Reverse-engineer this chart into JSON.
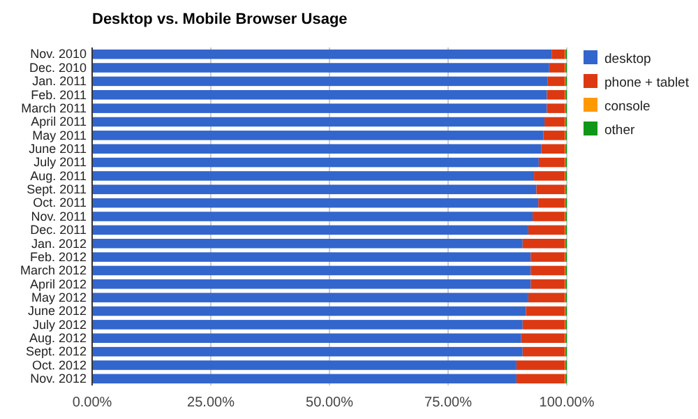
{
  "chart_data": {
    "type": "bar",
    "title": "Desktop vs. Mobile Browser Usage",
    "orientation": "horizontal",
    "stacked": true,
    "categories": [
      "Nov. 2010",
      "Dec. 2010",
      "Jan. 2011",
      "Feb. 2011",
      "March 2011",
      "April 2011",
      "May 2011",
      "June 2011",
      "July 2011",
      "Aug. 2011",
      "Sept. 2011",
      "Oct. 2011",
      "Nov. 2011",
      "Dec. 2011",
      "Jan. 2012",
      "Feb. 2012",
      "March 2012",
      "April 2012",
      "May 2012",
      "June 2012",
      "July 2012",
      "Aug. 2012",
      "Sept. 2012",
      "Oct. 2012",
      "Nov. 2012"
    ],
    "series": [
      {
        "name": "desktop",
        "color": "#3366cc",
        "values": [
          96.8,
          96.3,
          96.0,
          95.8,
          95.8,
          95.3,
          95.1,
          94.6,
          94.1,
          93.1,
          93.6,
          94.0,
          92.8,
          91.9,
          90.7,
          92.4,
          92.4,
          92.4,
          91.9,
          91.4,
          90.7,
          90.4,
          90.7,
          89.4,
          89.4
        ]
      },
      {
        "name": "phone + tablet",
        "color": "#dc3912",
        "values": [
          2.8,
          3.3,
          3.6,
          3.8,
          3.8,
          4.3,
          4.5,
          5.0,
          5.5,
          6.5,
          6.0,
          5.6,
          6.8,
          7.7,
          8.9,
          7.2,
          7.2,
          7.2,
          7.7,
          8.2,
          8.9,
          9.2,
          8.9,
          10.2,
          10.2
        ]
      },
      {
        "name": "console",
        "color": "#ff9900",
        "values": [
          0.1,
          0.1,
          0.1,
          0.1,
          0.1,
          0.1,
          0.1,
          0.1,
          0.1,
          0.1,
          0.1,
          0.1,
          0.1,
          0.1,
          0.1,
          0.1,
          0.1,
          0.1,
          0.1,
          0.1,
          0.1,
          0.1,
          0.1,
          0.1,
          0.1
        ]
      },
      {
        "name": "other",
        "color": "#109618",
        "values": [
          0.3,
          0.3,
          0.3,
          0.3,
          0.3,
          0.3,
          0.3,
          0.3,
          0.3,
          0.3,
          0.3,
          0.3,
          0.3,
          0.3,
          0.3,
          0.3,
          0.3,
          0.3,
          0.3,
          0.3,
          0.3,
          0.3,
          0.3,
          0.3,
          0.3
        ]
      }
    ],
    "xlim": [
      0,
      100
    ],
    "xticks": [
      {
        "value": 0,
        "label": "0.00%"
      },
      {
        "value": 25,
        "label": "25.00%"
      },
      {
        "value": 50,
        "label": "50.00%"
      },
      {
        "value": 75,
        "label": "75.00%"
      },
      {
        "value": 100,
        "label": "100.00%"
      }
    ],
    "grid": "x",
    "legend": "right"
  }
}
